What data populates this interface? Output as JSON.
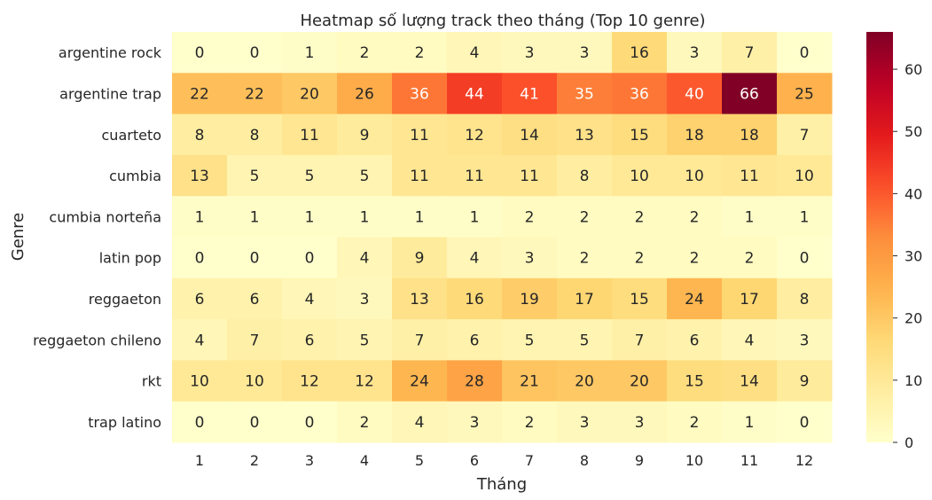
{
  "chart_data": {
    "type": "heatmap",
    "title": "Heatmap số lượng track theo tháng (Top 10 genre)",
    "xlabel": "Tháng",
    "ylabel": "Genre",
    "x_categories": [
      "1",
      "2",
      "3",
      "4",
      "5",
      "6",
      "7",
      "8",
      "9",
      "10",
      "11",
      "12"
    ],
    "y_categories": [
      "argentine rock",
      "argentine trap",
      "cuarteto",
      "cumbia",
      "cumbia norteña",
      "latin pop",
      "reggaeton",
      "reggaeton chileno",
      "rkt",
      "trap latino"
    ],
    "values": [
      [
        0,
        0,
        1,
        2,
        2,
        4,
        3,
        3,
        16,
        3,
        7,
        0
      ],
      [
        22,
        22,
        20,
        26,
        36,
        44,
        41,
        35,
        36,
        40,
        66,
        25
      ],
      [
        8,
        8,
        11,
        9,
        11,
        12,
        14,
        13,
        15,
        18,
        18,
        7
      ],
      [
        13,
        5,
        5,
        5,
        11,
        11,
        11,
        8,
        10,
        10,
        11,
        10
      ],
      [
        1,
        1,
        1,
        1,
        1,
        1,
        2,
        2,
        2,
        2,
        1,
        1
      ],
      [
        0,
        0,
        0,
        4,
        9,
        4,
        3,
        2,
        2,
        2,
        2,
        0
      ],
      [
        6,
        6,
        4,
        3,
        13,
        16,
        19,
        17,
        15,
        24,
        17,
        8
      ],
      [
        4,
        7,
        6,
        5,
        7,
        6,
        5,
        5,
        7,
        6,
        4,
        3
      ],
      [
        10,
        10,
        12,
        12,
        24,
        28,
        21,
        20,
        20,
        15,
        14,
        9
      ],
      [
        0,
        0,
        0,
        2,
        4,
        3,
        2,
        3,
        3,
        2,
        1,
        0
      ]
    ],
    "colormap": "YlOrRd",
    "vmin": 0,
    "vmax": 66,
    "colorbar_ticks": [
      0,
      10,
      20,
      30,
      40,
      50,
      60
    ],
    "annotations": true,
    "grid": false
  }
}
